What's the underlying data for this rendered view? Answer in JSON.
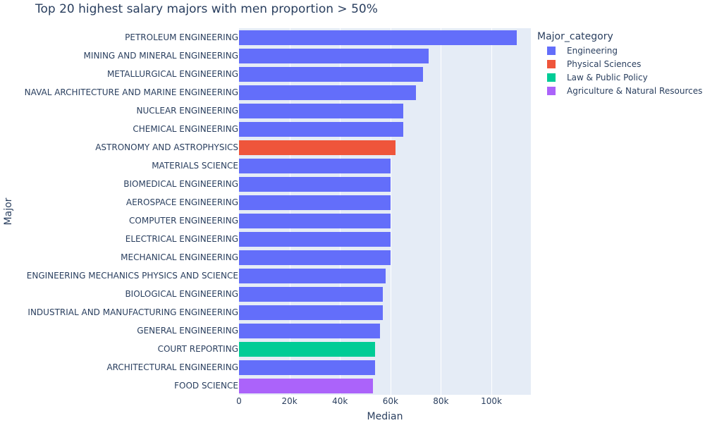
{
  "chart_data": {
    "type": "bar",
    "orientation": "horizontal",
    "title": "Top 20 highest salary majors with men proportion > 50%",
    "xlabel": "Median",
    "ylabel": "Major",
    "xlim": [
      0,
      115000
    ],
    "x_ticks": [
      "0",
      "20k",
      "40k",
      "60k",
      "80k",
      "100k"
    ],
    "x_tick_values": [
      0,
      20000,
      40000,
      60000,
      80000,
      100000
    ],
    "grid": true,
    "legend_position": "right",
    "legend_title": "Major_category",
    "categories": [
      "PETROLEUM ENGINEERING",
      "MINING AND MINERAL ENGINEERING",
      "METALLURGICAL ENGINEERING",
      "NAVAL ARCHITECTURE AND MARINE ENGINEERING",
      "NUCLEAR ENGINEERING",
      "CHEMICAL ENGINEERING",
      "ASTRONOMY AND ASTROPHYSICS",
      "MATERIALS SCIENCE",
      "BIOMEDICAL ENGINEERING",
      "AEROSPACE ENGINEERING",
      "COMPUTER ENGINEERING",
      "ELECTRICAL ENGINEERING",
      "MECHANICAL ENGINEERING",
      "ENGINEERING MECHANICS PHYSICS AND SCIENCE",
      "BIOLOGICAL ENGINEERING",
      "INDUSTRIAL AND MANUFACTURING ENGINEERING",
      "GENERAL ENGINEERING",
      "COURT REPORTING",
      "ARCHITECTURAL ENGINEERING",
      "FOOD SCIENCE"
    ],
    "values": [
      110000,
      75000,
      73000,
      70000,
      65000,
      65000,
      62000,
      60000,
      60000,
      60000,
      60000,
      60000,
      60000,
      58000,
      57000,
      57000,
      56000,
      54000,
      54000,
      53000
    ],
    "major_category": [
      "Engineering",
      "Engineering",
      "Engineering",
      "Engineering",
      "Engineering",
      "Engineering",
      "Physical Sciences",
      "Engineering",
      "Engineering",
      "Engineering",
      "Engineering",
      "Engineering",
      "Engineering",
      "Engineering",
      "Engineering",
      "Engineering",
      "Engineering",
      "Law & Public Policy",
      "Engineering",
      "Agriculture & Natural Resources"
    ],
    "series": [
      {
        "name": "Engineering",
        "color": "#636efa"
      },
      {
        "name": "Physical Sciences",
        "color": "#ef553b"
      },
      {
        "name": "Law & Public Policy",
        "color": "#00cc96"
      },
      {
        "name": "Agriculture & Natural Resources",
        "color": "#ab63fa"
      }
    ]
  },
  "legend": {
    "title": "Major_category",
    "items": [
      {
        "label": "Engineering",
        "color": "#636efa"
      },
      {
        "label": "Physical Sciences",
        "color": "#ef553b"
      },
      {
        "label": "Law & Public Policy",
        "color": "#00cc96"
      },
      {
        "label": "Agriculture & Natural Resources",
        "color": "#ab63fa"
      }
    ]
  }
}
